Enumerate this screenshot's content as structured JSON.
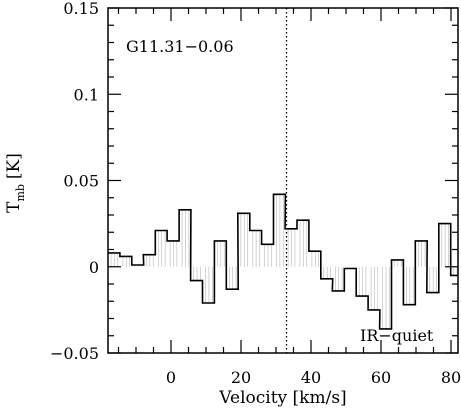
{
  "chart_data": {
    "type": "line",
    "source_label": "G11.31−0.06",
    "classification": "IR−quiet",
    "xlabel": "Velocity [km/s]",
    "ylabel": {
      "main": "T",
      "subscript": "mb",
      "unit": "[K]"
    },
    "xlim": [
      -18,
      82
    ],
    "ylim": [
      -0.05,
      0.15
    ],
    "xticks": [
      0,
      20,
      40,
      60,
      80
    ],
    "xtick_labels": [
      "0",
      "20",
      "40",
      "60",
      "80"
    ],
    "yticks": [
      -0.05,
      0,
      0.05,
      0.1,
      0.15
    ],
    "ytick_labels": [
      "−0.05",
      "0",
      "0.05",
      "0.1",
      "0.15"
    ],
    "x_minor_step": 5,
    "y_minor_step": 0.01,
    "reference_velocity": 33,
    "line_style": "steps",
    "fill_between_zero": true,
    "series": [
      {
        "x": [
          -18,
          -14.6,
          -11.2,
          -7.9,
          -4.5,
          -1.1,
          2.3,
          5.6,
          9.0,
          12.4,
          15.8,
          19.1,
          22.5,
          25.9,
          29.3,
          32.6,
          36.0,
          39.4,
          42.8,
          46.1,
          49.5,
          52.9,
          56.3,
          59.6,
          63.0,
          66.4,
          69.8,
          73.1,
          76.5,
          79.9
        ],
        "y": [
          0.008,
          0.006,
          0.001,
          0.007,
          0.021,
          0.015,
          0.033,
          -0.008,
          -0.021,
          0.015,
          -0.013,
          0.031,
          0.021,
          0.013,
          0.042,
          0.022,
          0.027,
          0.009,
          -0.007,
          -0.014,
          -0.001,
          -0.017,
          -0.025,
          -0.036,
          0.004,
          -0.022,
          0.015,
          -0.015,
          0.025,
          -0.005
        ]
      }
    ]
  }
}
